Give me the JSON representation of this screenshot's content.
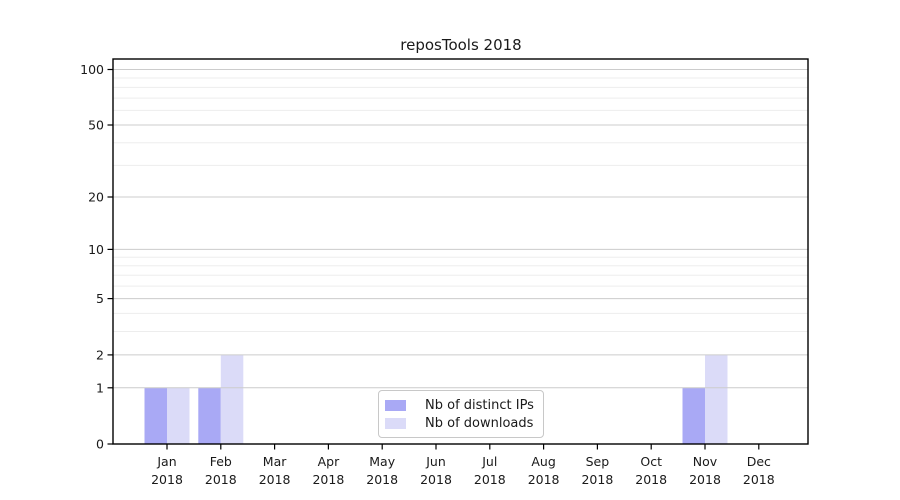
{
  "chart_data": {
    "type": "bar",
    "title": "reposTools 2018",
    "categories": [
      "Jan",
      "Feb",
      "Mar",
      "Apr",
      "May",
      "Jun",
      "Jul",
      "Aug",
      "Sep",
      "Oct",
      "Nov",
      "Dec"
    ],
    "x_year_label": "2018",
    "series": [
      {
        "name": "Nb of distinct IPs",
        "color": "#a9a9f5",
        "values": [
          1,
          1,
          0,
          0,
          0,
          0,
          0,
          0,
          0,
          0,
          1,
          0
        ]
      },
      {
        "name": "Nb of downloads",
        "color": "#dbdbf8",
        "values": [
          1,
          2,
          0,
          0,
          0,
          0,
          0,
          0,
          0,
          0,
          2,
          0
        ]
      }
    ],
    "yscale": "log1p",
    "ylim": [
      0,
      114
    ],
    "yticks": [
      0,
      1,
      2,
      5,
      10,
      20,
      50,
      100
    ],
    "minor_yticks": [
      3,
      4,
      6,
      7,
      8,
      9,
      30,
      40,
      60,
      70,
      80,
      90
    ],
    "grid": "horizontal",
    "legend_position": "lower-center",
    "colors": {
      "major_grid": "#cccccc",
      "minor_grid": "#ededed",
      "axis": "#000000",
      "text": "#1a1a1a",
      "background": "#ffffff"
    }
  }
}
